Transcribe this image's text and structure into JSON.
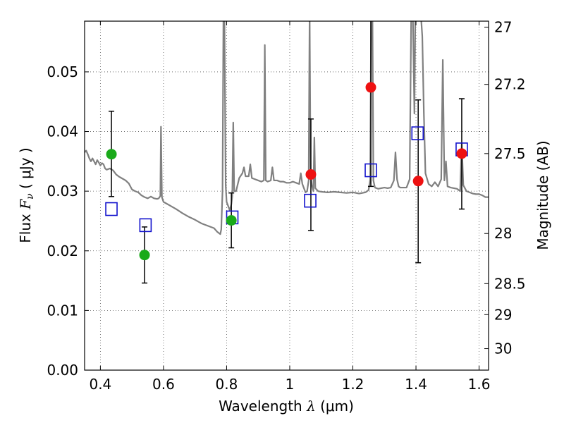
{
  "chart_data": {
    "type": "scatter",
    "xlabel_text": "Wavelength  ",
    "xlabel_symbol": "λ",
    "xlabel_unit": " (μm)",
    "ylabel_text": "Flux  ",
    "ylabel_symbol": "F",
    "ylabel_sub": "ν",
    "ylabel_unit": "  ( μJy )",
    "y2label": "Magnitude (AB)",
    "xlim": [
      0.35,
      1.63
    ],
    "ylim": [
      0.0,
      0.0585
    ],
    "grid": true,
    "x_ticks": [
      0.4,
      0.6,
      0.8,
      1.0,
      1.2,
      1.4,
      1.6
    ],
    "x_tick_labels": [
      "0.4",
      "0.6",
      "0.8",
      "1",
      "1.2",
      "1.4",
      "1.6"
    ],
    "y_ticks": [
      0.0,
      0.01,
      0.02,
      0.03,
      0.04,
      0.05
    ],
    "y_tick_labels": [
      "0.00",
      "0.01",
      "0.02",
      "0.03",
      "0.04",
      "0.05"
    ],
    "y2_ticks": [
      {
        "label": "27",
        "flux": 0.0575
      },
      {
        "label": "27.2",
        "flux": 0.0479
      },
      {
        "label": "27.5",
        "flux": 0.0363
      },
      {
        "label": "28",
        "flux": 0.0229
      },
      {
        "label": "28.5",
        "flux": 0.0145
      },
      {
        "label": "29",
        "flux": 0.0093
      },
      {
        "label": "30",
        "flux": 0.0036
      }
    ],
    "colors": {
      "spectrum": "#808080",
      "green_points": "#1aaa1a",
      "red_points": "#ee1111",
      "model_squares": "#1111cc",
      "error_bars": "#000000",
      "grid": "#555555"
    },
    "model_squares": [
      {
        "x": 0.435,
        "y": 0.027
      },
      {
        "x": 0.543,
        "y": 0.0243
      },
      {
        "x": 0.818,
        "y": 0.0256
      },
      {
        "x": 1.065,
        "y": 0.0284
      },
      {
        "x": 1.257,
        "y": 0.0335
      },
      {
        "x": 1.405,
        "y": 0.0397
      },
      {
        "x": 1.545,
        "y": 0.037
      }
    ],
    "observed_points": [
      {
        "x": 0.435,
        "y": 0.0362,
        "err_low": 0.0291,
        "err_high": 0.0434,
        "color": "green"
      },
      {
        "x": 0.54,
        "y": 0.0193,
        "err_low": 0.0146,
        "err_high": 0.024,
        "color": "green"
      },
      {
        "x": 0.815,
        "y": 0.0251,
        "err_low": 0.0205,
        "err_high": 0.0297,
        "color": "green"
      },
      {
        "x": 1.067,
        "y": 0.0328,
        "err_low": 0.0234,
        "err_high": 0.0421,
        "color": "red"
      },
      {
        "x": 1.257,
        "y": 0.0474,
        "err_low": 0.0308,
        "err_high": 0.06,
        "color": "red"
      },
      {
        "x": 1.407,
        "y": 0.0317,
        "err_low": 0.018,
        "err_high": 0.0453,
        "color": "red"
      },
      {
        "x": 1.545,
        "y": 0.0363,
        "err_low": 0.027,
        "err_high": 0.0455,
        "color": "red"
      }
    ],
    "spectrum": [
      [
        0.35,
        0.0365
      ],
      [
        0.355,
        0.0368
      ],
      [
        0.36,
        0.0362
      ],
      [
        0.365,
        0.0355
      ],
      [
        0.37,
        0.035
      ],
      [
        0.375,
        0.0355
      ],
      [
        0.38,
        0.035
      ],
      [
        0.385,
        0.0345
      ],
      [
        0.39,
        0.0352
      ],
      [
        0.395,
        0.0348
      ],
      [
        0.4,
        0.0343
      ],
      [
        0.405,
        0.0347
      ],
      [
        0.41,
        0.0345
      ],
      [
        0.415,
        0.0338
      ],
      [
        0.42,
        0.0336
      ],
      [
        0.43,
        0.0338
      ],
      [
        0.44,
        0.0335
      ],
      [
        0.45,
        0.0328
      ],
      [
        0.46,
        0.0324
      ],
      [
        0.47,
        0.0321
      ],
      [
        0.48,
        0.0318
      ],
      [
        0.49,
        0.0313
      ],
      [
        0.5,
        0.0303
      ],
      [
        0.51,
        0.03
      ],
      [
        0.52,
        0.0298
      ],
      [
        0.53,
        0.0293
      ],
      [
        0.54,
        0.029
      ],
      [
        0.55,
        0.0288
      ],
      [
        0.56,
        0.0291
      ],
      [
        0.57,
        0.0288
      ],
      [
        0.58,
        0.0287
      ],
      [
        0.585,
        0.0288
      ],
      [
        0.59,
        0.0292
      ],
      [
        0.592,
        0.0408
      ],
      [
        0.595,
        0.029
      ],
      [
        0.6,
        0.0282
      ],
      [
        0.62,
        0.0276
      ],
      [
        0.64,
        0.027
      ],
      [
        0.66,
        0.0263
      ],
      [
        0.68,
        0.0257
      ],
      [
        0.7,
        0.0252
      ],
      [
        0.72,
        0.0246
      ],
      [
        0.74,
        0.0242
      ],
      [
        0.76,
        0.0238
      ],
      [
        0.77,
        0.0232
      ],
      [
        0.78,
        0.0228
      ],
      [
        0.783,
        0.0236
      ],
      [
        0.787,
        0.03
      ],
      [
        0.79,
        0.06
      ],
      [
        0.793,
        0.06
      ],
      [
        0.797,
        0.031
      ],
      [
        0.8,
        0.0282
      ],
      [
        0.805,
        0.0275
      ],
      [
        0.81,
        0.0268
      ],
      [
        0.815,
        0.0278
      ],
      [
        0.818,
        0.0292
      ],
      [
        0.821,
        0.0415
      ],
      [
        0.824,
        0.03
      ],
      [
        0.83,
        0.03
      ],
      [
        0.84,
        0.0322
      ],
      [
        0.85,
        0.033
      ],
      [
        0.855,
        0.034
      ],
      [
        0.86,
        0.0325
      ],
      [
        0.87,
        0.0325
      ],
      [
        0.875,
        0.0345
      ],
      [
        0.88,
        0.0322
      ],
      [
        0.89,
        0.032
      ],
      [
        0.9,
        0.0318
      ],
      [
        0.91,
        0.0316
      ],
      [
        0.918,
        0.0318
      ],
      [
        0.921,
        0.0545
      ],
      [
        0.924,
        0.0318
      ],
      [
        0.93,
        0.0316
      ],
      [
        0.94,
        0.0318
      ],
      [
        0.945,
        0.034
      ],
      [
        0.95,
        0.0318
      ],
      [
        0.96,
        0.0318
      ],
      [
        0.97,
        0.0316
      ],
      [
        0.98,
        0.0316
      ],
      [
        0.99,
        0.0314
      ],
      [
        1.0,
        0.0314
      ],
      [
        1.01,
        0.0316
      ],
      [
        1.02,
        0.0314
      ],
      [
        1.03,
        0.0312
      ],
      [
        1.035,
        0.033
      ],
      [
        1.04,
        0.0312
      ],
      [
        1.05,
        0.0298
      ],
      [
        1.055,
        0.03
      ],
      [
        1.06,
        0.0318
      ],
      [
        1.063,
        0.06
      ],
      [
        1.066,
        0.033
      ],
      [
        1.07,
        0.031
      ],
      [
        1.075,
        0.03
      ],
      [
        1.078,
        0.039
      ],
      [
        1.081,
        0.0305
      ],
      [
        1.09,
        0.03
      ],
      [
        1.1,
        0.0299
      ],
      [
        1.12,
        0.0298
      ],
      [
        1.14,
        0.0299
      ],
      [
        1.16,
        0.0298
      ],
      [
        1.18,
        0.0297
      ],
      [
        1.2,
        0.0298
      ],
      [
        1.22,
        0.0296
      ],
      [
        1.24,
        0.0298
      ],
      [
        1.25,
        0.0302
      ],
      [
        1.255,
        0.032
      ],
      [
        1.258,
        0.06
      ],
      [
        1.262,
        0.06
      ],
      [
        1.265,
        0.0318
      ],
      [
        1.27,
        0.0306
      ],
      [
        1.28,
        0.0304
      ],
      [
        1.29,
        0.0305
      ],
      [
        1.3,
        0.0306
      ],
      [
        1.31,
        0.0305
      ],
      [
        1.32,
        0.0306
      ],
      [
        1.33,
        0.0318
      ],
      [
        1.335,
        0.0365
      ],
      [
        1.34,
        0.032
      ],
      [
        1.345,
        0.0308
      ],
      [
        1.35,
        0.0306
      ],
      [
        1.37,
        0.0306
      ],
      [
        1.38,
        0.032
      ],
      [
        1.385,
        0.06
      ],
      [
        1.39,
        0.06
      ],
      [
        1.395,
        0.043
      ],
      [
        1.398,
        0.06
      ],
      [
        1.403,
        0.06
      ],
      [
        1.41,
        0.06
      ],
      [
        1.415,
        0.06
      ],
      [
        1.42,
        0.056
      ],
      [
        1.425,
        0.043
      ],
      [
        1.43,
        0.033
      ],
      [
        1.44,
        0.0312
      ],
      [
        1.45,
        0.0308
      ],
      [
        1.46,
        0.0315
      ],
      [
        1.47,
        0.0308
      ],
      [
        1.48,
        0.032
      ],
      [
        1.485,
        0.052
      ],
      [
        1.49,
        0.0318
      ],
      [
        1.495,
        0.035
      ],
      [
        1.5,
        0.0308
      ],
      [
        1.51,
        0.0306
      ],
      [
        1.52,
        0.0305
      ],
      [
        1.53,
        0.0304
      ],
      [
        1.54,
        0.03
      ],
      [
        1.545,
        0.038
      ],
      [
        1.55,
        0.031
      ],
      [
        1.56,
        0.03
      ],
      [
        1.57,
        0.0298
      ],
      [
        1.58,
        0.0296
      ],
      [
        1.59,
        0.0295
      ],
      [
        1.6,
        0.0295
      ],
      [
        1.61,
        0.0293
      ],
      [
        1.62,
        0.029
      ],
      [
        1.63,
        0.029
      ]
    ]
  }
}
